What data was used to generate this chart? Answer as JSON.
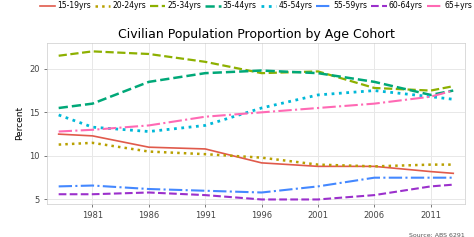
{
  "title": "Civilian Population Proportion by Age Cohort",
  "ylabel": "Percent",
  "source": "Source: ABS 6291",
  "years": [
    1978,
    1981,
    1986,
    1991,
    1996,
    2001,
    2006,
    2011,
    2013
  ],
  "series": [
    {
      "label": "15-19yrs",
      "values": [
        12.5,
        12.3,
        11.0,
        10.8,
        9.2,
        8.8,
        8.8,
        8.2,
        8.0
      ],
      "color": "#e05a4b",
      "linestyle": "solid",
      "linewidth": 1.2,
      "dashes": []
    },
    {
      "label": "20-24yrs",
      "values": [
        11.3,
        11.5,
        10.5,
        10.2,
        9.8,
        9.0,
        8.8,
        9.0,
        9.0
      ],
      "color": "#b8a000",
      "linestyle": "dotted",
      "linewidth": 1.8,
      "dashes": []
    },
    {
      "label": "25-34yrs",
      "values": [
        21.5,
        22.0,
        21.7,
        20.8,
        19.5,
        19.7,
        17.8,
        17.5,
        18.0
      ],
      "color": "#8db000",
      "linestyle": "dashed",
      "linewidth": 1.6,
      "dashes": [
        5,
        2
      ]
    },
    {
      "label": "35-44yrs",
      "values": [
        15.5,
        16.0,
        18.5,
        19.5,
        19.8,
        19.5,
        18.5,
        17.0,
        17.5
      ],
      "color": "#00a878",
      "linestyle": "dashed",
      "linewidth": 1.8,
      "dashes": [
        8,
        2
      ]
    },
    {
      "label": "45-54yrs",
      "values": [
        14.7,
        13.3,
        12.8,
        13.5,
        15.5,
        17.0,
        17.5,
        16.8,
        16.5
      ],
      "color": "#00b8d8",
      "linestyle": "dotted",
      "linewidth": 2.0,
      "dashes": []
    },
    {
      "label": "55-59yrs",
      "values": [
        6.5,
        6.6,
        6.2,
        6.0,
        5.8,
        6.5,
        7.5,
        7.5,
        7.5
      ],
      "color": "#4488ff",
      "linestyle": "dashdot",
      "linewidth": 1.5,
      "dashes": []
    },
    {
      "label": "60-64yrs",
      "values": [
        5.6,
        5.6,
        5.8,
        5.5,
        5.0,
        5.0,
        5.5,
        6.5,
        6.7
      ],
      "color": "#9b30cc",
      "linestyle": "dashed",
      "linewidth": 1.5,
      "dashes": [
        4,
        3
      ]
    },
    {
      "label": "65+yrs",
      "values": [
        12.8,
        13.0,
        13.5,
        14.5,
        15.0,
        15.5,
        16.0,
        16.8,
        17.5
      ],
      "color": "#ff69b4",
      "linestyle": "dashdot",
      "linewidth": 1.5,
      "dashes": []
    }
  ],
  "xticks": [
    1981,
    1986,
    1991,
    1996,
    2001,
    2006,
    2011
  ],
  "ylim": [
    4.5,
    23.0
  ],
  "yticks": [
    5,
    10,
    15,
    20
  ],
  "background_color": "#ffffff",
  "grid_color": "#e8e8e8",
  "title_fontsize": 9,
  "label_fontsize": 6.5,
  "legend_fontsize": 5.5,
  "tick_fontsize": 6
}
